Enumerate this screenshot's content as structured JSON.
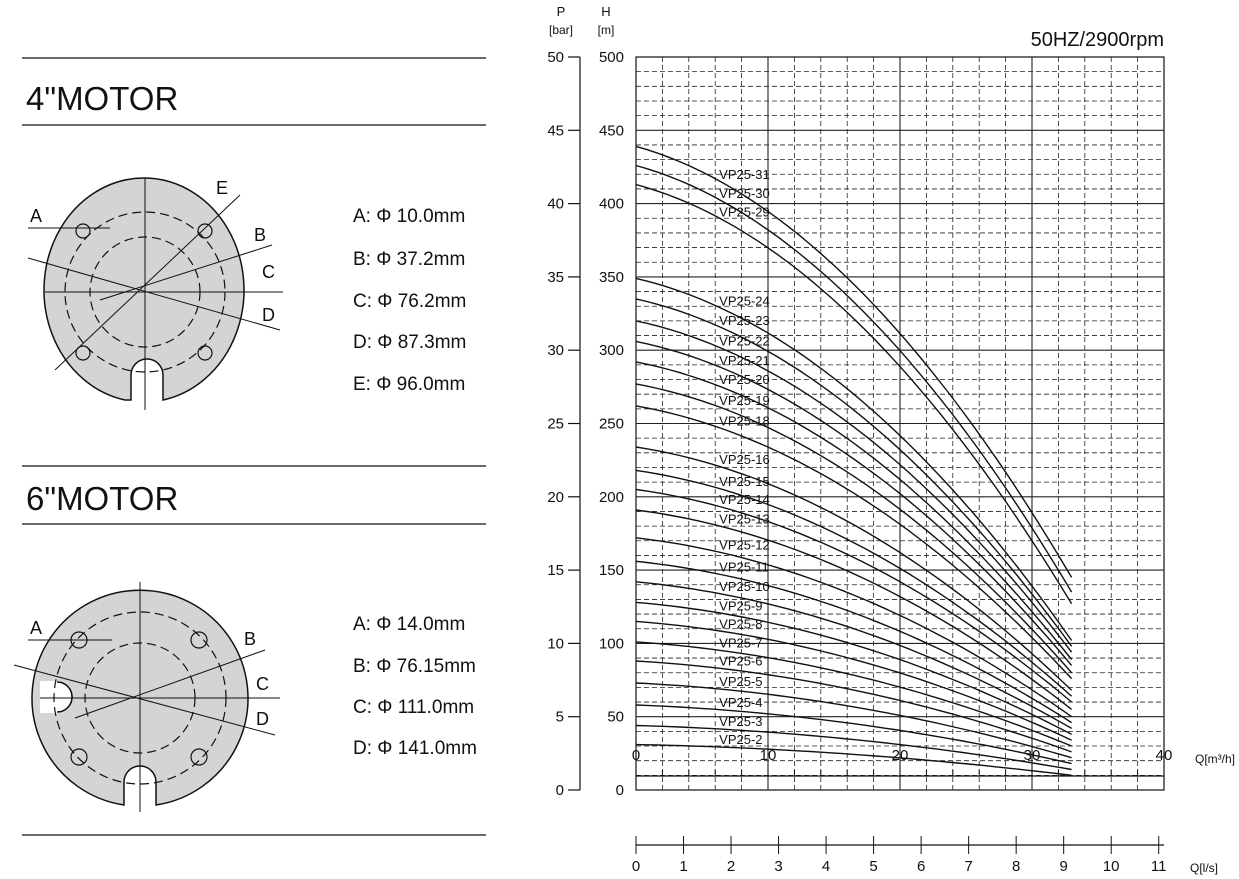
{
  "motor4": {
    "title": "4\"MOTOR",
    "specs": [
      {
        "letter": "A",
        "text": "A: Φ 10.0mm"
      },
      {
        "letter": "B",
        "text": "B: Φ 37.2mm"
      },
      {
        "letter": "C",
        "text": "C: Φ 76.2mm"
      },
      {
        "letter": "D",
        "text": "D: Φ 87.3mm"
      },
      {
        "letter": "E",
        "text": "E: Φ 96.0mm"
      }
    ]
  },
  "motor6": {
    "title": "6\"MOTOR",
    "specs": [
      {
        "letter": "A",
        "text": "A: Φ 14.0mm"
      },
      {
        "letter": "B",
        "text": "B: Φ 76.15mm"
      },
      {
        "letter": "C",
        "text": "C: Φ 111.0mm"
      },
      {
        "letter": "D",
        "text": "D: Φ 141.0mm"
      }
    ]
  },
  "colors": {
    "disc_fill": "#d4d4d4",
    "line": "#111111",
    "grid": "#222222"
  },
  "chart_data": {
    "type": "line",
    "title": "50HZ/2900rpm",
    "y_left_label": "P",
    "y_left_unit": "[bar]",
    "y_left_range": [
      0,
      50
    ],
    "y_left_ticks": [
      "0",
      "5",
      "10",
      "15",
      "20",
      "25",
      "30",
      "35",
      "40",
      "45",
      "50"
    ],
    "y_right_label": "H",
    "y_right_unit": "[m]",
    "y_range": [
      0,
      500
    ],
    "y_ticks": [
      "0",
      "50",
      "100",
      "150",
      "200",
      "250",
      "300",
      "350",
      "400",
      "450",
      "500"
    ],
    "x_label": "Q[m³/h]",
    "x_range": [
      0,
      40
    ],
    "x_ticks": [
      "0",
      "10",
      "20",
      "30",
      "40"
    ],
    "x2_label": "Q[l/s]",
    "x2_range": [
      0,
      11
    ],
    "x2_ticks": [
      "0",
      "1",
      "2",
      "3",
      "4",
      "5",
      "6",
      "7",
      "8",
      "9",
      "10",
      "11"
    ],
    "grid": true,
    "max_flow": 33,
    "series": [
      {
        "stages": 2,
        "label": "VP25-2",
        "h0": 31,
        "h_end": 10
      },
      {
        "stages": 3,
        "label": "VP25-3",
        "h0": 44,
        "h_end": 14
      },
      {
        "stages": 4,
        "label": "VP25-4",
        "h0": 58,
        "h_end": 18
      },
      {
        "stages": 5,
        "label": "VP25-5",
        "h0": 73,
        "h_end": 22
      },
      {
        "stages": 6,
        "label": "VP25-6",
        "h0": 88,
        "h_end": 26
      },
      {
        "stages": 7,
        "label": "VP25-7",
        "h0": 101,
        "h_end": 30
      },
      {
        "stages": 8,
        "label": "VP25-8",
        "h0": 115,
        "h_end": 34
      },
      {
        "stages": 9,
        "label": "VP25-9",
        "h0": 128,
        "h_end": 38
      },
      {
        "stages": 10,
        "label": "VP25-10",
        "h0": 142,
        "h_end": 42
      },
      {
        "stages": 11,
        "label": "VP25-11",
        "h0": 156,
        "h_end": 46
      },
      {
        "stages": 12,
        "label": "VP25-12",
        "h0": 172,
        "h_end": 50
      },
      {
        "stages": 13,
        "label": "VP25-13",
        "h0": 191,
        "h_end": 55
      },
      {
        "stages": 14,
        "label": "VP25-14",
        "h0": 205,
        "h_end": 60
      },
      {
        "stages": 15,
        "label": "VP25-15",
        "h0": 218,
        "h_end": 64
      },
      {
        "stages": 16,
        "label": "VP25-16",
        "h0": 234,
        "h_end": 68
      },
      {
        "stages": 18,
        "label": "VP25-18",
        "h0": 262,
        "h_end": 76
      },
      {
        "stages": 19,
        "label": "VP25-19",
        "h0": 277,
        "h_end": 80
      },
      {
        "stages": 20,
        "label": "VP25-20",
        "h0": 292,
        "h_end": 85
      },
      {
        "stages": 21,
        "label": "VP25-21",
        "h0": 306,
        "h_end": 89
      },
      {
        "stages": 22,
        "label": "VP25-22",
        "h0": 320,
        "h_end": 94
      },
      {
        "stages": 23,
        "label": "VP25-23",
        "h0": 335,
        "h_end": 98
      },
      {
        "stages": 24,
        "label": "VP25-24",
        "h0": 349,
        "h_end": 102
      },
      {
        "stages": 29,
        "label": "VP25-29",
        "h0": 413,
        "h_end": 127
      },
      {
        "stages": 30,
        "label": "VP25-30",
        "h0": 426,
        "h_end": 135
      },
      {
        "stages": 31,
        "label": "VP25-31",
        "h0": 439,
        "h_end": 145
      }
    ]
  }
}
